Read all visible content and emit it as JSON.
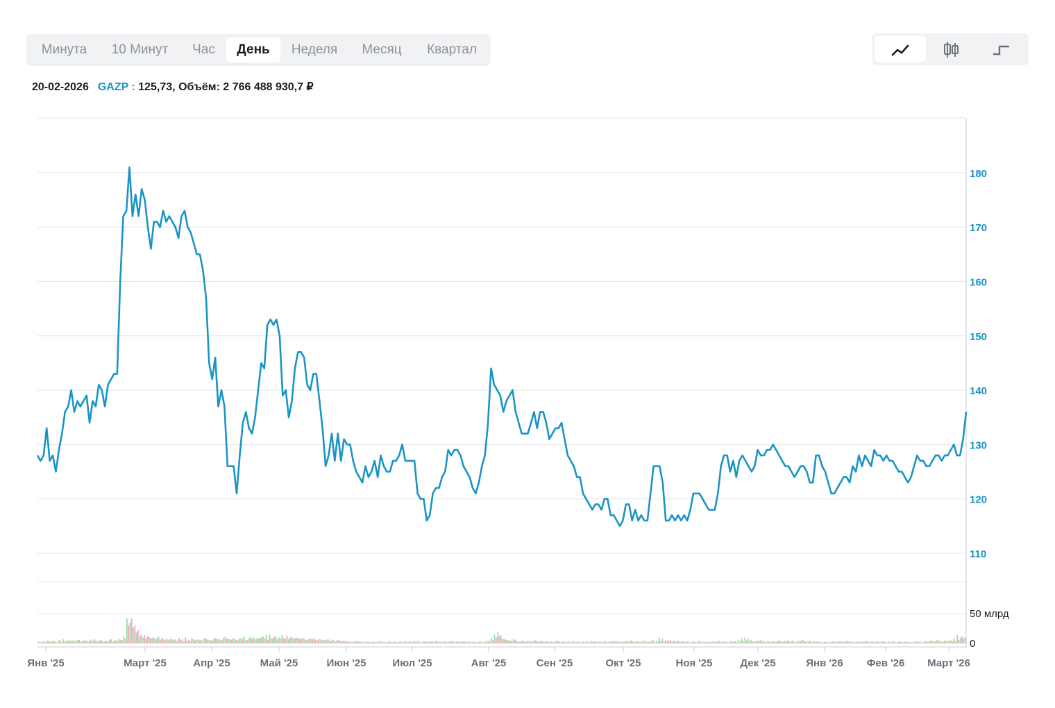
{
  "periods": [
    "Минута",
    "10 Минут",
    "Час",
    "День",
    "Неделя",
    "Месяц",
    "Квартал"
  ],
  "active_period": "День",
  "view_modes": [
    {
      "icon": "line-chart-icon",
      "active": true
    },
    {
      "icon": "candlestick-icon",
      "active": false
    },
    {
      "icon": "step-chart-icon",
      "active": false
    }
  ],
  "info": {
    "date": "20-02-2026",
    "ticker": "GAZP",
    "separator": ":",
    "summary": "125,73, Объём: 2 766 488 930,7 ₽"
  },
  "colors": {
    "line": "#1a94c5",
    "up": "#9be3a6",
    "down": "#f6a8c4",
    "grid": "#e4e6ea"
  },
  "chart_data": {
    "type": "line",
    "title": "",
    "series": [
      {
        "name": "GAZP",
        "values": [
          128,
          127,
          128,
          133,
          127,
          128,
          125,
          129,
          132,
          136,
          137,
          140,
          136,
          138,
          137,
          138,
          139,
          134,
          138,
          137,
          141,
          140,
          137,
          141,
          142,
          143,
          143,
          160,
          172,
          173,
          181,
          172,
          176,
          172,
          177,
          175,
          170,
          166,
          171,
          171,
          170,
          173,
          171,
          172,
          171,
          170,
          168,
          172,
          173,
          170,
          169,
          167,
          165,
          165,
          162,
          157,
          145,
          142,
          146,
          137,
          140,
          137,
          126,
          126,
          126,
          121,
          128,
          134,
          136,
          133,
          132,
          135,
          140,
          145,
          144,
          152,
          153,
          152,
          153,
          150,
          139,
          140,
          135,
          138,
          144,
          147,
          147,
          146,
          141,
          140,
          143,
          143,
          138,
          133,
          126,
          128,
          132,
          127,
          132,
          127,
          131,
          130,
          130,
          127,
          125,
          124,
          123,
          126,
          124,
          125,
          127,
          124,
          128,
          126,
          125,
          125,
          127,
          127,
          128,
          130,
          127,
          127,
          127,
          127,
          121,
          120,
          120,
          116,
          117,
          121,
          122,
          122,
          124,
          125,
          129,
          128,
          129,
          129,
          128,
          126,
          125,
          124,
          122,
          121,
          123,
          126,
          128,
          134,
          144,
          141,
          140,
          139,
          136,
          138,
          139,
          140,
          136,
          134,
          132,
          132,
          132,
          134,
          136,
          133,
          136,
          136,
          134,
          131,
          132,
          133,
          133,
          134,
          131,
          128,
          127,
          126,
          124,
          124,
          121,
          120,
          119,
          118,
          119,
          119,
          118,
          120,
          120,
          117,
          117,
          116,
          115,
          116,
          119,
          119,
          116,
          118,
          116,
          117,
          116,
          116,
          121,
          126,
          126,
          126,
          123,
          116,
          116,
          117,
          116,
          117,
          116,
          117,
          116,
          118,
          121,
          121,
          121,
          120,
          119,
          118,
          118,
          118,
          121,
          126,
          128,
          128,
          125,
          127,
          124,
          127,
          128,
          127,
          126,
          125,
          126,
          129,
          128,
          128,
          129,
          129,
          130,
          129,
          128,
          127,
          126,
          126,
          125,
          124,
          125,
          126,
          126,
          125,
          123,
          123,
          128,
          128,
          126,
          125,
          123,
          121,
          121,
          122,
          123,
          124,
          124,
          123,
          126,
          125,
          128,
          126,
          128,
          127,
          126,
          129,
          128,
          128,
          127,
          128,
          127,
          127,
          126,
          125,
          125,
          124,
          123,
          124,
          126,
          128,
          127,
          127,
          126,
          126,
          127,
          128,
          128,
          127,
          128,
          128,
          129,
          130,
          128,
          128,
          131,
          136
        ]
      }
    ],
    "volume": [
      {
        "name": "up",
        "values": [
          3,
          2,
          3,
          5,
          3,
          4,
          2,
          6,
          7,
          5,
          6,
          5,
          4,
          6,
          4,
          5,
          3,
          4,
          5,
          3,
          6,
          4,
          3,
          7,
          5,
          4,
          6,
          12,
          42,
          35,
          26,
          18,
          12,
          10,
          8,
          11,
          9,
          7,
          12,
          9,
          6,
          5,
          8,
          7,
          4,
          6,
          3,
          5,
          4,
          7,
          6,
          5,
          4,
          8,
          6,
          5,
          9,
          7,
          5,
          11,
          8,
          6,
          7,
          5,
          9,
          12,
          6,
          11,
          10,
          8,
          9,
          12,
          14,
          15,
          9,
          12,
          10,
          14,
          8,
          7,
          11,
          9,
          10,
          8,
          7,
          6,
          8,
          9,
          5,
          7,
          6,
          5,
          4,
          6,
          3,
          5,
          4,
          3,
          3,
          2,
          3,
          3,
          3,
          2,
          3,
          2,
          2,
          3,
          4,
          2,
          2,
          3,
          2,
          2,
          3,
          2,
          3,
          3,
          2,
          3,
          4,
          2,
          3,
          2,
          3,
          2,
          3,
          3,
          4,
          2,
          3,
          3,
          3,
          2,
          3,
          4,
          3,
          2,
          2,
          3,
          2,
          3,
          5,
          9,
          15,
          20,
          14,
          8,
          6,
          5,
          7,
          4,
          3,
          5,
          3,
          4,
          3,
          5,
          3,
          4,
          3,
          2,
          3,
          3,
          4,
          2,
          3,
          3,
          2,
          4,
          3,
          2,
          3,
          3,
          2,
          3,
          3,
          3,
          2,
          3,
          2,
          3,
          3,
          4,
          3,
          3,
          4,
          5,
          3,
          4,
          3,
          5,
          3,
          4,
          6,
          4,
          9,
          8,
          5,
          4,
          3,
          3,
          4,
          3,
          2,
          3,
          2,
          3,
          2,
          3,
          2,
          3,
          2,
          4,
          3,
          4,
          3,
          3,
          2,
          3,
          4,
          6,
          8,
          10,
          8,
          6,
          4,
          5,
          6,
          4,
          3,
          3,
          4,
          3,
          5,
          3,
          4,
          3,
          5,
          3,
          4,
          6,
          3,
          3,
          2,
          3,
          3,
          2,
          3,
          2,
          2,
          3,
          2,
          3,
          2,
          4,
          3,
          3,
          2,
          3,
          3,
          4,
          3,
          3,
          2,
          3,
          3,
          3,
          2,
          2,
          3,
          2,
          3,
          2,
          3,
          2,
          2,
          3,
          3,
          2,
          4,
          3,
          5,
          4,
          6,
          3,
          5,
          4,
          5,
          9,
          14,
          10,
          8
        ]
      },
      {
        "name": "down",
        "values": [
          2,
          3,
          2,
          3,
          4,
          3,
          5,
          2,
          3,
          4,
          3,
          4,
          6,
          3,
          5,
          4,
          6,
          7,
          4,
          5,
          3,
          4,
          6,
          3,
          5,
          7,
          5,
          8,
          30,
          42,
          30,
          22,
          15,
          14,
          12,
          9,
          10,
          8,
          6,
          7,
          8,
          7,
          6,
          5,
          9,
          7,
          10,
          6,
          8,
          5,
          7,
          6,
          9,
          6,
          5,
          8,
          7,
          6,
          9,
          8,
          7,
          9,
          6,
          8,
          7,
          5,
          9,
          8,
          7,
          9,
          10,
          8,
          6,
          9,
          11,
          7,
          8,
          9,
          13,
          10,
          8,
          9,
          7,
          9,
          6,
          8,
          7,
          6,
          7,
          5,
          6,
          7,
          5,
          4,
          6,
          4,
          5,
          4,
          3,
          3,
          4,
          3,
          2,
          3,
          2,
          3,
          2,
          2,
          3,
          2,
          3,
          2,
          3,
          2,
          3,
          3,
          2,
          3,
          4,
          3,
          2,
          3,
          3,
          3,
          3,
          4,
          3,
          2,
          3,
          3,
          4,
          2,
          3,
          3,
          3,
          2,
          2,
          3,
          2,
          3,
          2,
          3,
          3,
          6,
          10,
          12,
          8,
          6,
          5,
          4,
          6,
          3,
          4,
          3,
          4,
          3,
          5,
          3,
          4,
          3,
          4,
          3,
          2,
          4,
          3,
          3,
          2,
          3,
          3,
          2,
          3,
          2,
          2,
          3,
          4,
          3,
          2,
          3,
          3,
          2,
          3,
          4,
          3,
          2,
          3,
          4,
          3,
          3,
          2,
          3,
          2,
          3,
          2,
          3,
          2,
          3,
          4,
          3,
          5,
          6,
          5,
          4,
          3,
          4,
          3,
          2,
          3,
          2,
          4,
          3,
          2,
          3,
          3,
          2,
          3,
          2,
          3,
          2,
          3,
          3,
          2,
          3,
          4,
          5,
          4,
          3,
          3,
          4,
          3,
          2,
          3,
          2,
          3,
          4,
          3,
          4,
          5,
          3,
          2,
          3,
          4,
          5,
          3,
          4,
          3,
          3,
          3,
          2,
          3,
          2,
          3,
          3,
          4,
          3,
          3,
          4,
          3,
          2,
          3,
          2,
          3,
          3,
          2,
          3,
          3,
          2,
          3,
          2,
          3,
          3,
          2,
          3,
          2,
          3,
          3,
          2,
          3,
          3,
          2,
          3,
          3,
          4,
          3,
          5,
          4,
          3,
          4,
          5,
          4,
          3,
          6,
          12,
          10,
          9
        ]
      }
    ],
    "x_labels": [
      "Янв '25",
      "Март '25",
      "Апр '25",
      "Май '25",
      "Июн '25",
      "Июл '25",
      "Авг '25",
      "Сен '25",
      "Окт '25",
      "Ноя '25",
      "Дек '25",
      "Янв '26",
      "Фев '26",
      "Март '26"
    ],
    "y_ticks": [
      "110",
      "120",
      "130",
      "140",
      "150",
      "160",
      "170",
      "180"
    ],
    "ylim": [
      110,
      180
    ],
    "volume_ticks": [
      "0",
      "50 млрд"
    ],
    "volume_ylim": [
      0,
      50
    ],
    "grid": true
  }
}
